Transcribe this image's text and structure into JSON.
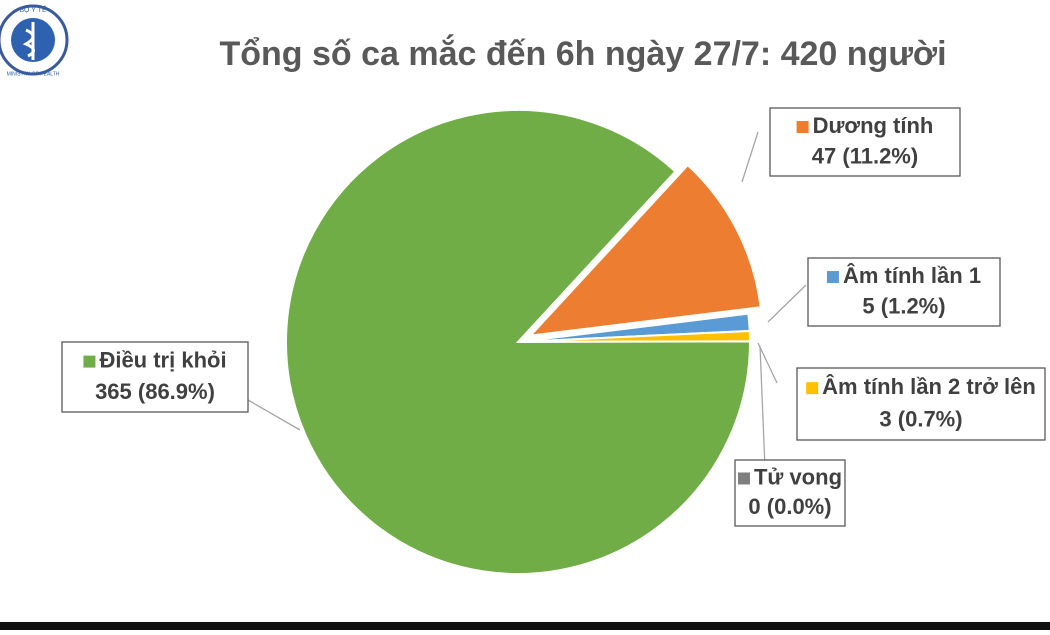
{
  "logo": {
    "top": "BỘ Y TẾ",
    "bottom": "MINISTRY OF HEALTH"
  },
  "chart_data": {
    "type": "pie",
    "title": "Tổng số ca mắc đến 6h ngày 27/7: 420 người",
    "categories": [
      "Dương tính",
      "Âm tính lần 1",
      "Âm tính lần 2 trở lên",
      "Tử vong",
      "Điều trị khỏi"
    ],
    "values": [
      47,
      5,
      3,
      0,
      365
    ],
    "value_labels": [
      "47 (11.2%)",
      "5 (1.2%)",
      "3 (0.7%)",
      "0 (0.0%)",
      "365 (86.9%)"
    ],
    "colors": [
      "#ed7d31",
      "#5b9bd5",
      "#ffc000",
      "#7f7f7f",
      "#70ad47"
    ]
  }
}
